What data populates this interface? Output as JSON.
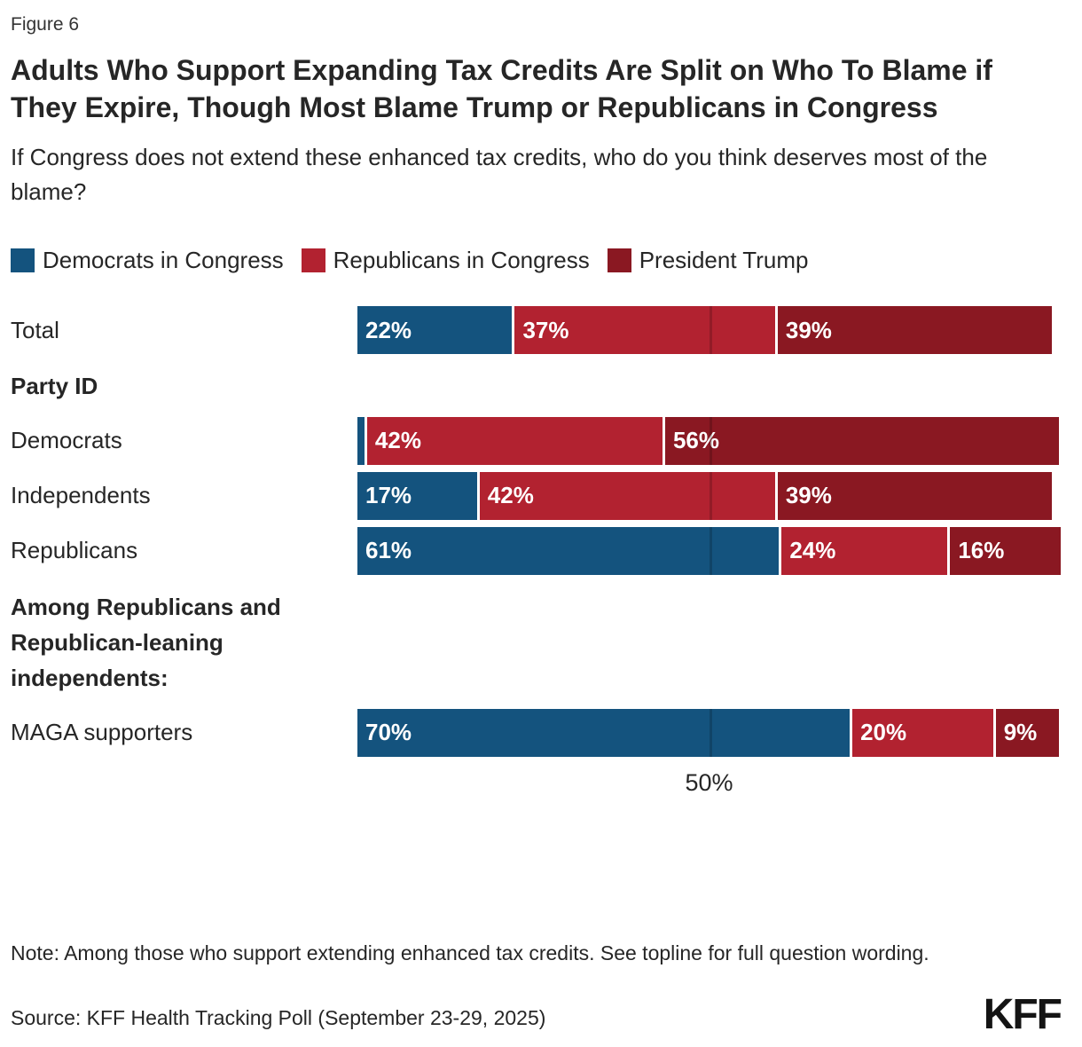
{
  "figure_label": "Figure 6",
  "title": "Adults Who Support Expanding Tax Credits Are Split on Who To Blame if They Expire, Though Most Blame Trump or Republicans in Congress",
  "subtitle": "If Congress does not extend these enhanced tax credits, who do you think deserves most of the blame?",
  "legend": [
    {
      "label": "Democrats in Congress",
      "color": "#14537e"
    },
    {
      "label": "Republicans in Congress",
      "color": "#b22230"
    },
    {
      "label": "President Trump",
      "color": "#8a1822"
    }
  ],
  "chart_data": {
    "type": "bar",
    "orientation": "horizontal-stacked",
    "xlim": [
      0,
      100
    ],
    "axis_tick": "50%",
    "gridline_at": 50,
    "series_names": [
      "Democrats in Congress",
      "Republicans in Congress",
      "President Trump"
    ],
    "rows": [
      {
        "type": "bar",
        "label": "Total",
        "values": [
          22,
          37,
          39
        ],
        "labels": [
          "22%",
          "37%",
          "39%"
        ]
      },
      {
        "type": "section",
        "label": "Party ID"
      },
      {
        "type": "bar",
        "label": "Democrats",
        "values": [
          1,
          42,
          56
        ],
        "labels": [
          "",
          "42%",
          "56%"
        ]
      },
      {
        "type": "bar",
        "label": "Independents",
        "values": [
          17,
          42,
          39
        ],
        "labels": [
          "17%",
          "42%",
          "39%"
        ]
      },
      {
        "type": "bar",
        "label": "Republicans",
        "values": [
          61,
          24,
          16
        ],
        "labels": [
          "61%",
          "24%",
          "16%"
        ]
      },
      {
        "type": "section",
        "label": "Among Republicans and Republican-leaning independents:"
      },
      {
        "type": "bar",
        "label": "MAGA supporters",
        "values": [
          70,
          20,
          9
        ],
        "labels": [
          "70%",
          "20%",
          "9%"
        ]
      }
    ]
  },
  "note": "Note: Among those who support extending enhanced tax credits. See topline for full question wording.",
  "source": "Source: KFF Health Tracking Poll (September 23-29, 2025)",
  "logo": "KFF"
}
